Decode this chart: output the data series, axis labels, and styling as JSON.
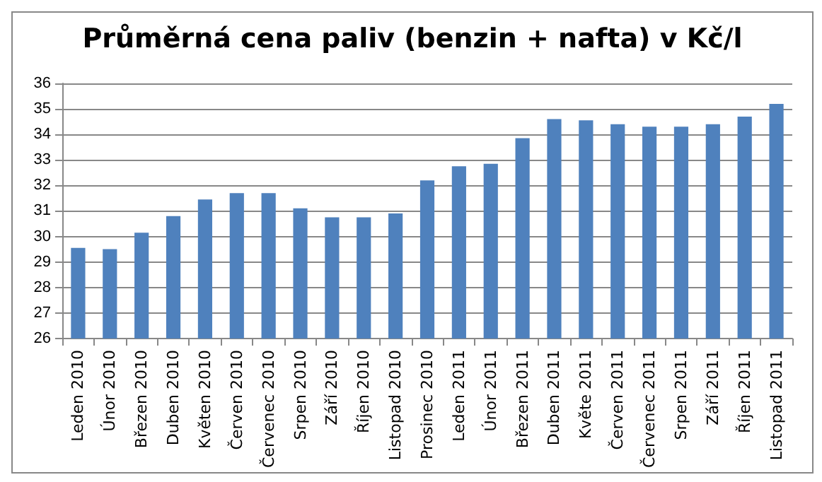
{
  "chart_data": {
    "type": "bar",
    "title": "Průměrná cena paliv (benzin + nafta) v Kč/l",
    "categories": [
      "Leden 2010",
      "Únor 2010",
      "Březen 2010",
      "Duben 2010",
      "Květen 2010",
      "Červen 2010",
      "Červenec 2010",
      "Srpen 2010",
      "Září 2010",
      "Říjen 2010",
      "Listopad 2010",
      "Prosinec 2010",
      "Leden 2011",
      "Únor 2011",
      "Březen 2011",
      "Duben 2011",
      "Květe 2011",
      "Červen 2011",
      "Červenec 2011",
      "Srpen 2011",
      "Září 2011",
      "Říjen 2011",
      "Listopad 2011"
    ],
    "values": [
      29.55,
      29.5,
      30.15,
      30.8,
      31.45,
      31.7,
      31.7,
      31.1,
      30.75,
      30.75,
      30.9,
      32.2,
      32.75,
      32.85,
      33.85,
      34.6,
      34.55,
      34.4,
      34.3,
      34.3,
      34.4,
      34.7,
      35.2
    ],
    "color": "#4f81bd",
    "ylim": [
      26,
      36
    ],
    "yticks": [
      26,
      27,
      28,
      29,
      30,
      31,
      32,
      33,
      34,
      35,
      36
    ],
    "grid": true
  }
}
